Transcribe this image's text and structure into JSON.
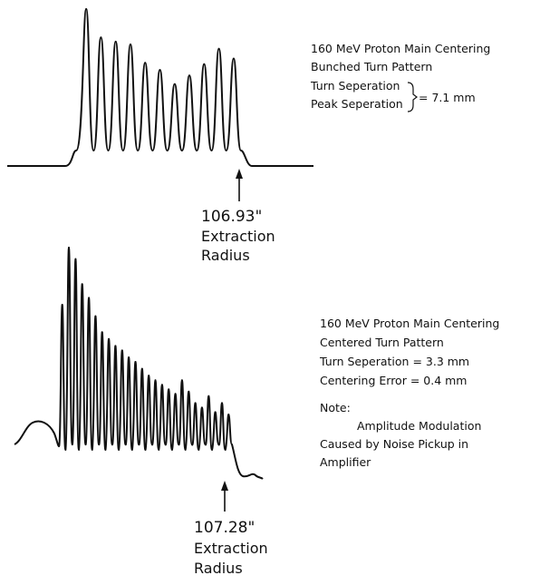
{
  "chart_data": [
    {
      "type": "line",
      "title": "160 MeV Proton Main Centering",
      "subtitle": "Bunched Turn Pattern",
      "annotations": {
        "turn_label": "Turn Seperation",
        "peak_label": "Peak Seperation",
        "brace_value": "= 7.1 mm"
      },
      "marker": {
        "value": "106.93\"",
        "label_1": "Extraction",
        "label_2": "Radius"
      },
      "series": [
        {
          "peaks": [
            1.0,
            0.8,
            0.77,
            0.75,
            0.62,
            0.57,
            0.47,
            0.53,
            0.61,
            0.72,
            0.65
          ]
        }
      ],
      "grid": false,
      "axes_visible": false
    },
    {
      "type": "line",
      "title": "160 MeV Proton Main Centering",
      "subtitle": "Centered Turn Pattern",
      "annotations": {
        "turn_separation": "Turn Seperation = 3.3 mm",
        "centering_error": "Centering Error = 0.4 mm",
        "note_heading": "Note:",
        "note_1": "Amplitude Modulation",
        "note_2": "Caused by Noise Pickup in",
        "note_3": "Amplifier"
      },
      "marker": {
        "value": "107.28\"",
        "label_1": "Extraction",
        "label_2": "Radius"
      },
      "series": [
        {
          "peaks": [
            0.75,
            1.0,
            0.95,
            0.84,
            0.78,
            0.7,
            0.63,
            0.6,
            0.57,
            0.55,
            0.52,
            0.5,
            0.47,
            0.44,
            0.42,
            0.4,
            0.38,
            0.36,
            0.42,
            0.37,
            0.32,
            0.3,
            0.35,
            0.28,
            0.32,
            0.27
          ],
          "baseline_start": 0.05,
          "baseline_end": 0.09
        }
      ],
      "grid": false,
      "axes_visible": false
    }
  ]
}
